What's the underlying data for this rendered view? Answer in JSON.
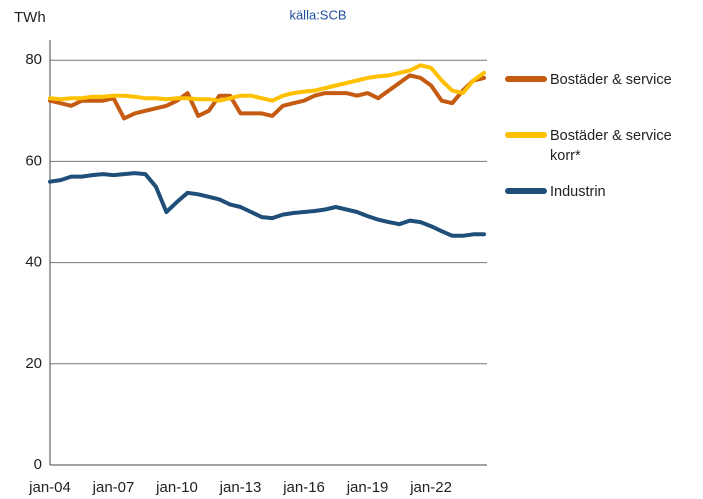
{
  "chart_data": {
    "type": "line",
    "title": "källa:SCB",
    "y_label": "TWh",
    "categories": [
      "jan-04",
      null,
      null,
      null,
      null,
      null,
      "jan-07",
      null,
      null,
      null,
      null,
      null,
      "jan-10",
      null,
      null,
      null,
      null,
      null,
      "jan-13",
      null,
      null,
      null,
      null,
      null,
      "jan-16",
      null,
      null,
      null,
      null,
      null,
      "jan-19",
      null,
      null,
      null,
      null,
      null,
      "jan-22",
      null,
      null,
      null,
      null,
      null
    ],
    "series": [
      {
        "name": "Bostäder & service",
        "color": "#c55a11",
        "values": [
          72,
          71.5,
          71,
          72,
          72,
          72,
          72.5,
          68.5,
          69.5,
          70,
          70.5,
          71,
          72,
          73.5,
          69,
          70,
          73,
          73,
          69.5,
          69.5,
          69.5,
          69,
          71,
          71.5,
          72,
          73,
          73.5,
          73.5,
          73.5,
          73,
          73.5,
          72.5,
          74,
          75.5,
          77,
          76.5,
          75,
          72,
          71.5,
          74,
          76,
          76.5
        ]
      },
      {
        "name": "Bostäder & service korr*",
        "color": "#ffc000",
        "values": [
          72.5,
          72.3,
          72.5,
          72.5,
          72.8,
          72.8,
          73,
          73,
          72.8,
          72.5,
          72.5,
          72.3,
          72.5,
          72.5,
          72.3,
          72.3,
          72,
          72.5,
          73,
          73,
          72.5,
          72,
          73,
          73.5,
          73.8,
          74,
          74.5,
          75,
          75.5,
          76,
          76.5,
          76.8,
          77,
          77.5,
          78,
          79,
          78.5,
          76,
          74,
          73.5,
          76,
          77.5
        ]
      },
      {
        "name": "Industrin",
        "color": "#1f4e79",
        "values": [
          56,
          56.3,
          57,
          57,
          57.3,
          57.5,
          57.3,
          57.5,
          57.7,
          57.5,
          55,
          50,
          52,
          53.8,
          53.5,
          53,
          52.5,
          51.5,
          51,
          50,
          49,
          48.8,
          49.5,
          49.8,
          50,
          50.2,
          50.5,
          51,
          50.5,
          50,
          49.2,
          48.5,
          48,
          47.6,
          48.3,
          48,
          47.2,
          46.2,
          45.3,
          45.3,
          45.6,
          45.6
        ]
      }
    ],
    "ylim": [
      0,
      84
    ],
    "yticks": [
      0,
      20,
      40,
      60,
      80
    ],
    "grid": true,
    "legend": "right"
  }
}
